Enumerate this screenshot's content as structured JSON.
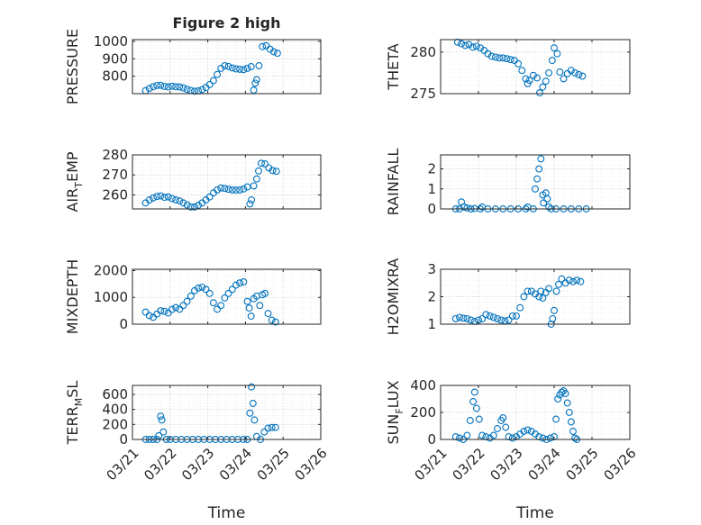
{
  "figure": {
    "title": "Figure 2 high",
    "xlabel": "Time",
    "xticklabels": [
      "03/21",
      "03/22",
      "03/23",
      "03/24",
      "03/25",
      "03/26"
    ]
  },
  "colors": {
    "marker": "#0072BD",
    "axis": "#262626",
    "grid": "#d0d0d0",
    "minorgrid": "#e6e6e6"
  },
  "chart_data": [
    {
      "type": "scatter",
      "title": "Figure 2 high",
      "ylabel": "PRESSURE",
      "ylabel_sub": "",
      "x": [
        "03/21",
        "03/26"
      ],
      "xlim": [
        0,
        5
      ],
      "ylim": [
        700,
        1010
      ],
      "yticks": [
        800,
        900,
        1000
      ],
      "yticklabels": [
        "800",
        "900",
        "1000"
      ],
      "grid": true,
      "marker": "o",
      "points": [
        [
          0.35,
          717
        ],
        [
          0.45,
          730
        ],
        [
          0.55,
          740
        ],
        [
          0.65,
          747
        ],
        [
          0.75,
          748
        ],
        [
          0.85,
          742
        ],
        [
          0.95,
          738
        ],
        [
          1.05,
          743
        ],
        [
          1.15,
          740
        ],
        [
          1.25,
          738
        ],
        [
          1.35,
          733
        ],
        [
          1.45,
          725
        ],
        [
          1.55,
          718
        ],
        [
          1.65,
          714
        ],
        [
          1.75,
          716
        ],
        [
          1.85,
          723
        ],
        [
          1.95,
          735
        ],
        [
          2.05,
          752
        ],
        [
          2.15,
          775
        ],
        [
          2.25,
          810
        ],
        [
          2.35,
          845
        ],
        [
          2.45,
          860
        ],
        [
          2.55,
          856
        ],
        [
          2.65,
          848
        ],
        [
          2.75,
          842
        ],
        [
          2.85,
          840
        ],
        [
          2.95,
          838
        ],
        [
          3.05,
          845
        ],
        [
          3.15,
          855
        ],
        [
          3.22,
          720
        ],
        [
          3.26,
          760
        ],
        [
          3.3,
          780
        ],
        [
          3.36,
          860
        ],
        [
          3.45,
          970
        ],
        [
          3.55,
          975
        ],
        [
          3.65,
          955
        ],
        [
          3.75,
          940
        ],
        [
          3.85,
          932
        ]
      ]
    },
    {
      "type": "scatter",
      "ylabel": "THETA",
      "ylabel_sub": "",
      "x": [
        "03/21",
        "03/26"
      ],
      "xlim": [
        0,
        5
      ],
      "ylim": [
        275,
        281.5
      ],
      "yticks": [
        275,
        280
      ],
      "yticklabels": [
        "275",
        "280"
      ],
      "grid": true,
      "marker": "o",
      "points": [
        [
          0.45,
          281.2
        ],
        [
          0.55,
          281
        ],
        [
          0.65,
          280.8
        ],
        [
          0.75,
          280.9
        ],
        [
          0.85,
          280.6
        ],
        [
          0.95,
          280.7
        ],
        [
          1.05,
          280.5
        ],
        [
          1.15,
          280.2
        ],
        [
          1.25,
          279.8
        ],
        [
          1.35,
          279.5
        ],
        [
          1.45,
          279.4
        ],
        [
          1.55,
          279.3
        ],
        [
          1.65,
          279.3
        ],
        [
          1.75,
          279.2
        ],
        [
          1.85,
          279.1
        ],
        [
          1.95,
          279
        ],
        [
          2.05,
          278.6
        ],
        [
          2.15,
          277.8
        ],
        [
          2.25,
          276.8
        ],
        [
          2.3,
          276.2
        ],
        [
          2.35,
          276.6
        ],
        [
          2.45,
          277.2
        ],
        [
          2.55,
          276.9
        ],
        [
          2.62,
          275.1
        ],
        [
          2.7,
          275.8
        ],
        [
          2.78,
          276.5
        ],
        [
          2.86,
          277.5
        ],
        [
          2.95,
          279
        ],
        [
          3.0,
          280.5
        ],
        [
          3.08,
          279.8
        ],
        [
          3.15,
          277.6
        ],
        [
          3.25,
          276.8
        ],
        [
          3.35,
          277.4
        ],
        [
          3.45,
          277.8
        ],
        [
          3.55,
          277.5
        ],
        [
          3.65,
          277.3
        ],
        [
          3.75,
          277.1
        ]
      ]
    },
    {
      "type": "scatter",
      "ylabel": "AIR",
      "ylabel_sub": "T",
      "ylabel_after": "EMP",
      "x": [
        "03/21",
        "03/26"
      ],
      "xlim": [
        0,
        5
      ],
      "ylim": [
        253,
        280
      ],
      "yticks": [
        260,
        270,
        280
      ],
      "yticklabels": [
        "260",
        "270",
        "280"
      ],
      "grid": true,
      "marker": "o",
      "points": [
        [
          0.35,
          256
        ],
        [
          0.45,
          257.5
        ],
        [
          0.55,
          258.5
        ],
        [
          0.65,
          259.2
        ],
        [
          0.75,
          259.5
        ],
        [
          0.85,
          258.8
        ],
        [
          0.95,
          259
        ],
        [
          1.05,
          258.2
        ],
        [
          1.15,
          257.5
        ],
        [
          1.25,
          257
        ],
        [
          1.35,
          256
        ],
        [
          1.45,
          255
        ],
        [
          1.55,
          254
        ],
        [
          1.65,
          254
        ],
        [
          1.75,
          254.8
        ],
        [
          1.85,
          256
        ],
        [
          1.95,
          257.5
        ],
        [
          2.05,
          259
        ],
        [
          2.15,
          261
        ],
        [
          2.25,
          262.5
        ],
        [
          2.35,
          263.5
        ],
        [
          2.45,
          263.2
        ],
        [
          2.55,
          262.8
        ],
        [
          2.65,
          262.5
        ],
        [
          2.75,
          262.4
        ],
        [
          2.85,
          262.5
        ],
        [
          2.95,
          263
        ],
        [
          3.05,
          264
        ],
        [
          3.12,
          255.5
        ],
        [
          3.16,
          257.5
        ],
        [
          3.22,
          264.5
        ],
        [
          3.3,
          268
        ],
        [
          3.35,
          272
        ],
        [
          3.42,
          275.8
        ],
        [
          3.52,
          275.5
        ],
        [
          3.62,
          273.5
        ],
        [
          3.72,
          272.2
        ],
        [
          3.82,
          271.8
        ]
      ]
    },
    {
      "type": "scatter",
      "ylabel": "RAINFALL",
      "ylabel_sub": "",
      "x": [
        "03/21",
        "03/26"
      ],
      "xlim": [
        0,
        5
      ],
      "ylim": [
        0,
        2.7
      ],
      "yticks": [
        0,
        1,
        2
      ],
      "yticklabels": [
        "0",
        "1",
        "2"
      ],
      "grid": true,
      "marker": "o",
      "points": [
        [
          0.4,
          0
        ],
        [
          0.5,
          0
        ],
        [
          0.55,
          0.35
        ],
        [
          0.62,
          0.1
        ],
        [
          0.7,
          0.05
        ],
        [
          0.8,
          0
        ],
        [
          0.9,
          0.02
        ],
        [
          1.05,
          0
        ],
        [
          1.1,
          0.1
        ],
        [
          1.25,
          0
        ],
        [
          1.45,
          0
        ],
        [
          1.65,
          0
        ],
        [
          1.85,
          0
        ],
        [
          2.05,
          0
        ],
        [
          2.25,
          0
        ],
        [
          2.3,
          0.1
        ],
        [
          2.45,
          0
        ],
        [
          2.5,
          1.0
        ],
        [
          2.55,
          1.5
        ],
        [
          2.6,
          2.0
        ],
        [
          2.65,
          2.5
        ],
        [
          2.7,
          0.7
        ],
        [
          2.72,
          0.3
        ],
        [
          2.78,
          0.8
        ],
        [
          2.82,
          0.5
        ],
        [
          2.86,
          0.1
        ],
        [
          2.92,
          0
        ],
        [
          3.05,
          0
        ],
        [
          3.25,
          0
        ],
        [
          3.45,
          0
        ],
        [
          3.65,
          0
        ],
        [
          3.85,
          0
        ]
      ]
    },
    {
      "type": "scatter",
      "ylabel": "MIXDEPTH",
      "ylabel_sub": "",
      "x": [
        "03/21",
        "03/26"
      ],
      "xlim": [
        0,
        5
      ],
      "ylim": [
        0,
        2050
      ],
      "yticks": [
        0,
        1000,
        2000
      ],
      "yticklabels": [
        "0",
        "1000",
        "2000"
      ],
      "grid": true,
      "marker": "o",
      "points": [
        [
          0.35,
          450
        ],
        [
          0.45,
          320
        ],
        [
          0.55,
          260
        ],
        [
          0.65,
          380
        ],
        [
          0.75,
          500
        ],
        [
          0.85,
          480
        ],
        [
          0.95,
          420
        ],
        [
          1.05,
          550
        ],
        [
          1.15,
          620
        ],
        [
          1.25,
          560
        ],
        [
          1.35,
          700
        ],
        [
          1.45,
          850
        ],
        [
          1.55,
          1050
        ],
        [
          1.65,
          1250
        ],
        [
          1.75,
          1350
        ],
        [
          1.85,
          1380
        ],
        [
          1.95,
          1300
        ],
        [
          2.05,
          1150
        ],
        [
          2.15,
          800
        ],
        [
          2.25,
          560
        ],
        [
          2.35,
          700
        ],
        [
          2.45,
          980
        ],
        [
          2.55,
          1150
        ],
        [
          2.65,
          1300
        ],
        [
          2.75,
          1460
        ],
        [
          2.85,
          1540
        ],
        [
          2.95,
          1580
        ],
        [
          3.05,
          850
        ],
        [
          3.1,
          600
        ],
        [
          3.15,
          300
        ],
        [
          3.22,
          950
        ],
        [
          3.3,
          1050
        ],
        [
          3.38,
          700
        ],
        [
          3.45,
          1100
        ],
        [
          3.52,
          1150
        ],
        [
          3.6,
          400
        ],
        [
          3.7,
          150
        ],
        [
          3.8,
          80
        ]
      ]
    },
    {
      "type": "scatter",
      "ylabel": "H2OMIXRA",
      "ylabel_sub": "",
      "x": [
        "03/21",
        "03/26"
      ],
      "xlim": [
        0,
        5
      ],
      "ylim": [
        1,
        3
      ],
      "yticks": [
        1,
        2,
        3
      ],
      "yticklabels": [
        "1",
        "2",
        "3"
      ],
      "grid": true,
      "marker": "o",
      "points": [
        [
          0.4,
          1.2
        ],
        [
          0.5,
          1.25
        ],
        [
          0.6,
          1.22
        ],
        [
          0.7,
          1.2
        ],
        [
          0.8,
          1.15
        ],
        [
          0.9,
          1.1
        ],
        [
          1.0,
          1.15
        ],
        [
          1.1,
          1.2
        ],
        [
          1.2,
          1.35
        ],
        [
          1.3,
          1.3
        ],
        [
          1.4,
          1.25
        ],
        [
          1.5,
          1.2
        ],
        [
          1.6,
          1.15
        ],
        [
          1.7,
          1.12
        ],
        [
          1.8,
          1.15
        ],
        [
          1.9,
          1.3
        ],
        [
          2.0,
          1.3
        ],
        [
          2.1,
          1.6
        ],
        [
          2.2,
          2.0
        ],
        [
          2.3,
          2.2
        ],
        [
          2.4,
          2.2
        ],
        [
          2.5,
          2.1
        ],
        [
          2.6,
          2.0
        ],
        [
          2.65,
          2.2
        ],
        [
          2.7,
          1.95
        ],
        [
          2.78,
          2.15
        ],
        [
          2.86,
          2.3
        ],
        [
          2.92,
          1.0
        ],
        [
          2.96,
          1.2
        ],
        [
          3.0,
          1.5
        ],
        [
          3.06,
          2.2
        ],
        [
          3.12,
          2.45
        ],
        [
          3.2,
          2.65
        ],
        [
          3.3,
          2.5
        ],
        [
          3.4,
          2.6
        ],
        [
          3.5,
          2.55
        ],
        [
          3.6,
          2.6
        ],
        [
          3.7,
          2.55
        ]
      ]
    },
    {
      "type": "scatter",
      "ylabel": "TERR",
      "ylabel_sub": "M",
      "ylabel_after": "SL",
      "x": [
        "03/21",
        "03/26"
      ],
      "xlim": [
        0,
        5
      ],
      "ylim": [
        0,
        720
      ],
      "yticks": [
        0,
        200,
        400,
        600
      ],
      "yticklabels": [
        "0",
        "200",
        "400",
        "600"
      ],
      "grid": true,
      "marker": "o",
      "points": [
        [
          0.35,
          0
        ],
        [
          0.45,
          0
        ],
        [
          0.55,
          0
        ],
        [
          0.65,
          0
        ],
        [
          0.7,
          50
        ],
        [
          0.75,
          310
        ],
        [
          0.78,
          260
        ],
        [
          0.82,
          100
        ],
        [
          0.9,
          0
        ],
        [
          1.0,
          0
        ],
        [
          1.15,
          0
        ],
        [
          1.3,
          0
        ],
        [
          1.45,
          0
        ],
        [
          1.6,
          0
        ],
        [
          1.75,
          0
        ],
        [
          1.9,
          0
        ],
        [
          2.05,
          0
        ],
        [
          2.2,
          0
        ],
        [
          2.35,
          0
        ],
        [
          2.5,
          0
        ],
        [
          2.65,
          0
        ],
        [
          2.8,
          0
        ],
        [
          2.95,
          0
        ],
        [
          3.05,
          0
        ],
        [
          3.12,
          350
        ],
        [
          3.16,
          700
        ],
        [
          3.2,
          480
        ],
        [
          3.24,
          260
        ],
        [
          3.3,
          40
        ],
        [
          3.4,
          0
        ],
        [
          3.5,
          100
        ],
        [
          3.6,
          150
        ],
        [
          3.7,
          160
        ],
        [
          3.8,
          160
        ]
      ]
    },
    {
      "type": "scatter",
      "ylabel": "SUN",
      "ylabel_sub": "F",
      "ylabel_after": "LUX",
      "x": [
        "03/21",
        "03/26"
      ],
      "xlim": [
        0,
        5
      ],
      "ylim": [
        0,
        400
      ],
      "yticks": [
        0,
        200,
        400
      ],
      "yticklabels": [
        "0",
        "200",
        "400"
      ],
      "grid": true,
      "marker": "o",
      "points": [
        [
          0.4,
          20
        ],
        [
          0.5,
          10
        ],
        [
          0.6,
          0
        ],
        [
          0.7,
          30
        ],
        [
          0.78,
          140
        ],
        [
          0.86,
          280
        ],
        [
          0.9,
          350
        ],
        [
          0.95,
          230
        ],
        [
          1.02,
          150
        ],
        [
          1.1,
          30
        ],
        [
          1.2,
          20
        ],
        [
          1.3,
          10
        ],
        [
          1.4,
          30
        ],
        [
          1.5,
          80
        ],
        [
          1.6,
          140
        ],
        [
          1.65,
          160
        ],
        [
          1.72,
          90
        ],
        [
          1.8,
          20
        ],
        [
          1.9,
          10
        ],
        [
          2.0,
          20
        ],
        [
          2.1,
          40
        ],
        [
          2.2,
          60
        ],
        [
          2.3,
          70
        ],
        [
          2.4,
          60
        ],
        [
          2.5,
          40
        ],
        [
          2.6,
          20
        ],
        [
          2.7,
          10
        ],
        [
          2.8,
          0
        ],
        [
          2.9,
          10
        ],
        [
          3.0,
          20
        ],
        [
          3.05,
          150
        ],
        [
          3.1,
          300
        ],
        [
          3.15,
          330
        ],
        [
          3.2,
          350
        ],
        [
          3.25,
          360
        ],
        [
          3.3,
          340
        ],
        [
          3.35,
          270
        ],
        [
          3.4,
          200
        ],
        [
          3.45,
          130
        ],
        [
          3.5,
          60
        ],
        [
          3.55,
          10
        ],
        [
          3.6,
          0
        ]
      ]
    }
  ]
}
